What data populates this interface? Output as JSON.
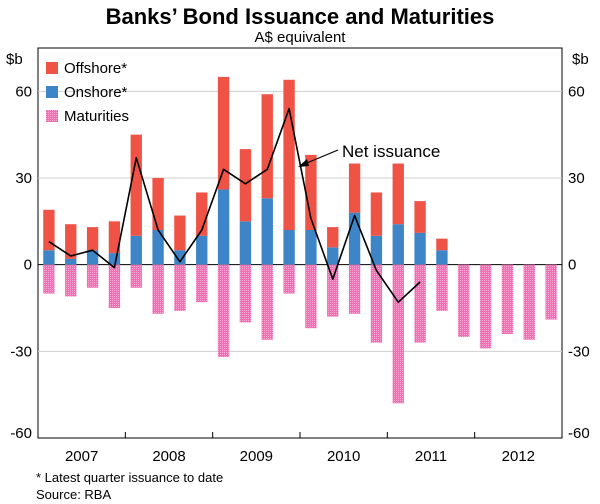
{
  "chart_data": {
    "type": "bar",
    "title": "Banks’ Bond Issuance and Maturities",
    "subtitle": "A$ equivalent",
    "ylabel_left": "$b",
    "ylabel_right": "$b",
    "ylim": [
      -60,
      75
    ],
    "yticks": [
      -60,
      -30,
      0,
      30,
      60
    ],
    "xlabels": [
      "2007",
      "2008",
      "2009",
      "2010",
      "2011",
      "2012"
    ],
    "quarters": [
      "2007Q1",
      "2007Q2",
      "2007Q3",
      "2007Q4",
      "2008Q1",
      "2008Q2",
      "2008Q3",
      "2008Q4",
      "2009Q1",
      "2009Q2",
      "2009Q3",
      "2009Q4",
      "2010Q1",
      "2010Q2",
      "2010Q3",
      "2010Q4",
      "2011Q1",
      "2011Q2",
      "2011Q3",
      "2011Q4",
      "2012Q1",
      "2012Q2",
      "2012Q3",
      "2012Q4"
    ],
    "series": [
      {
        "name": "Offshore*",
        "color": "#ee5346",
        "values": [
          14,
          12,
          8,
          11,
          35,
          18,
          12,
          15,
          39,
          25,
          36,
          52,
          26,
          7,
          17,
          15,
          21,
          11,
          4,
          null,
          null,
          null,
          null,
          null
        ]
      },
      {
        "name": "Onshore*",
        "color": "#3d85c6",
        "values": [
          5,
          2,
          5,
          4,
          10,
          12,
          5,
          10,
          26,
          15,
          23,
          12,
          12,
          6,
          18,
          10,
          14,
          11,
          5,
          null,
          null,
          null,
          null,
          null
        ]
      },
      {
        "name": "Maturities",
        "color": "#f06eb4",
        "pattern": "hatched",
        "values": [
          -10,
          -11,
          -8,
          -15,
          -8,
          -17,
          -16,
          -13,
          -32,
          -20,
          -26,
          -10,
          -22,
          -18,
          -17,
          -27,
          -48,
          -27,
          -16,
          -25,
          -29,
          -24,
          -26,
          -19
        ]
      }
    ],
    "net_issuance": {
      "name": "Net issuance",
      "color": "#000000",
      "values": [
        8,
        3,
        5,
        -1,
        37,
        12,
        1,
        12,
        33,
        28,
        33,
        54,
        16,
        -5,
        17,
        -2,
        -13,
        -6,
        null,
        null,
        null,
        null,
        null,
        null
      ]
    },
    "legend": [
      "Offshore*",
      "Onshore*",
      "Maturities"
    ],
    "annotation": "Net issuance"
  },
  "footnote": "*     Latest quarter issuance to date",
  "source": "Source: RBA"
}
